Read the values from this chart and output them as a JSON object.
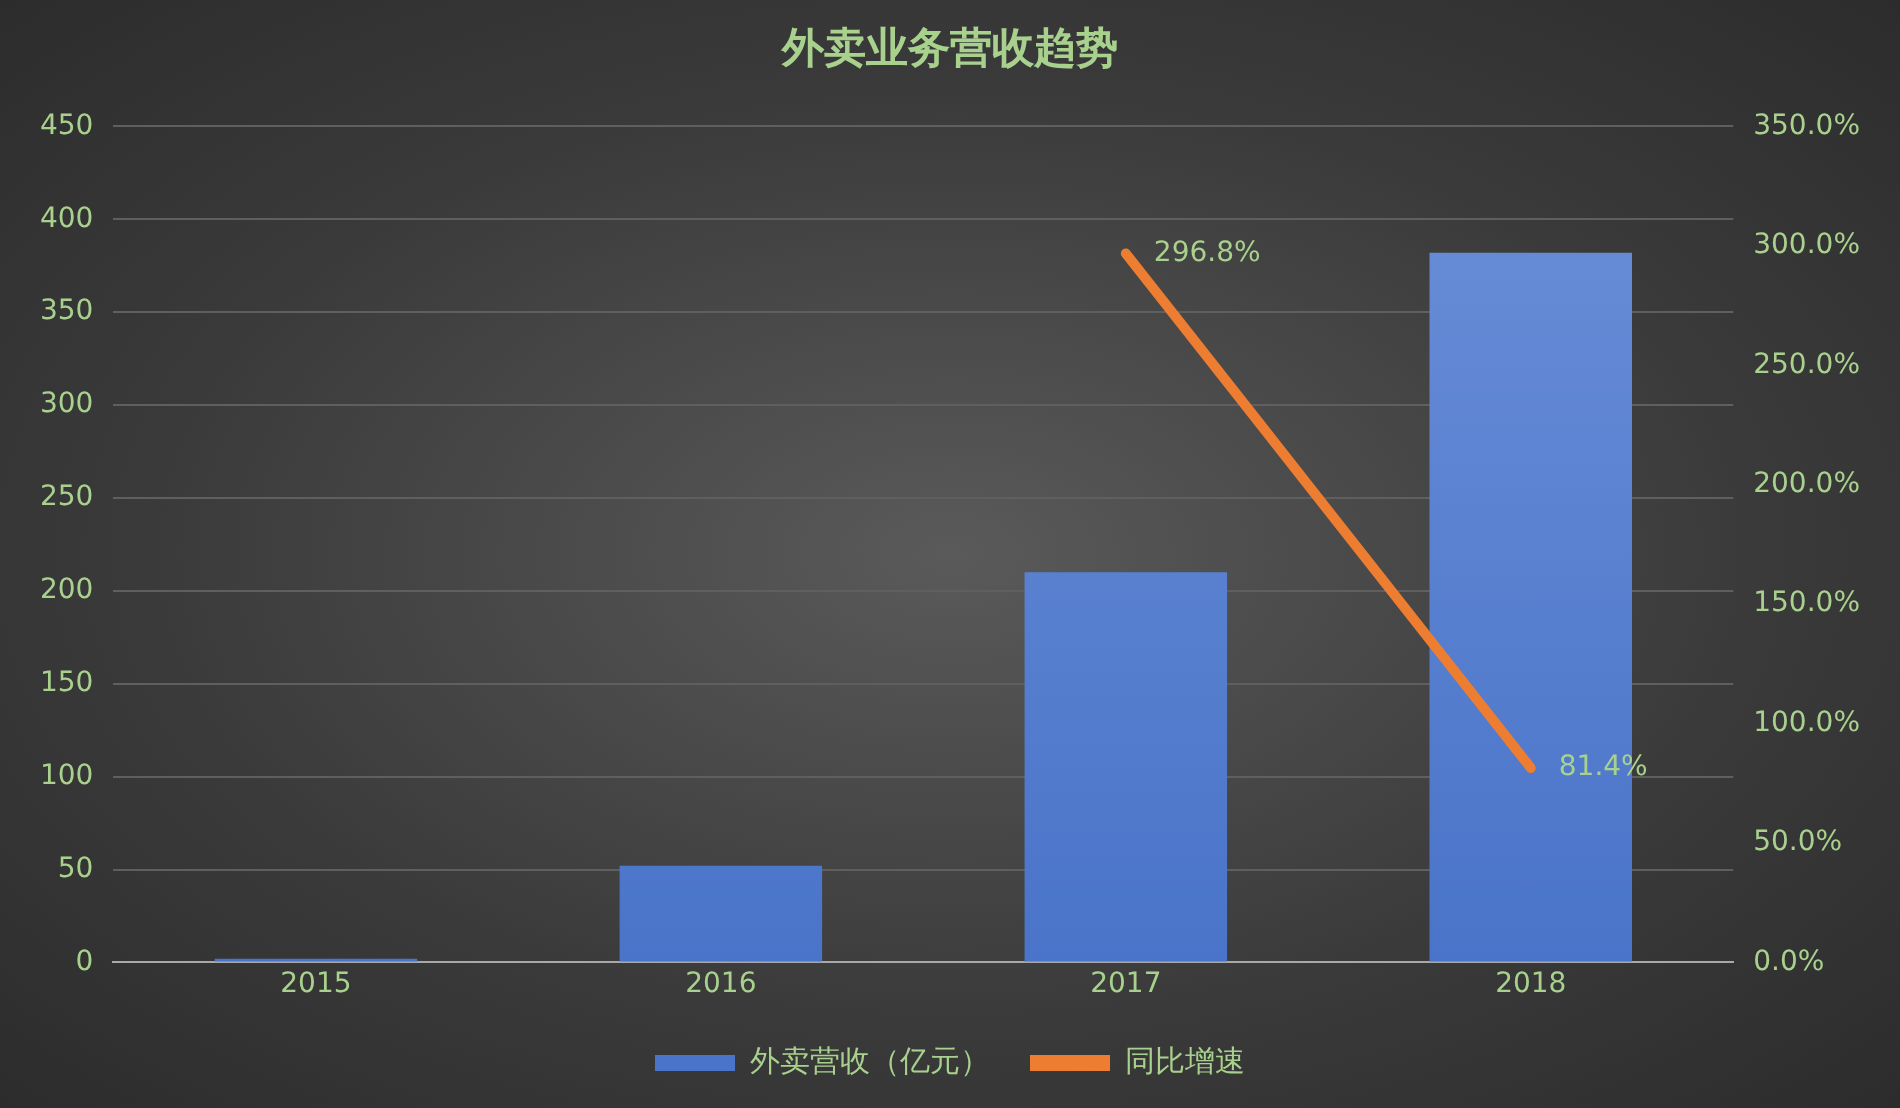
{
  "chart_data": {
    "type": "bar",
    "title": "外卖业务营收趋势",
    "categories": [
      "2015",
      "2016",
      "2017",
      "2018"
    ],
    "series": [
      {
        "name": "外卖营收（亿元）",
        "color": "#4a74c9",
        "values": [
          2,
          52,
          210,
          382
        ]
      },
      {
        "name": "同比增速",
        "type": "line",
        "axis": "y2",
        "color": "#ed7d31",
        "values": [
          null,
          null,
          296.8,
          81.4
        ],
        "value_labels": [
          null,
          null,
          "296.8%",
          "81.4%"
        ]
      }
    ],
    "ylim": [
      0,
      450
    ],
    "yticks": [
      0,
      50,
      100,
      150,
      200,
      250,
      300,
      350,
      400,
      450
    ],
    "y2lim": [
      0,
      350
    ],
    "y2ticks": [
      {
        "value": 0,
        "label": "0.0%"
      },
      {
        "value": 50,
        "label": "50.0%"
      },
      {
        "value": 100,
        "label": "100.0%"
      },
      {
        "value": 150,
        "label": "150.0%"
      },
      {
        "value": 200,
        "label": "200.0%"
      },
      {
        "value": 250,
        "label": "250.0%"
      },
      {
        "value": 300,
        "label": "300.0%"
      },
      {
        "value": 350,
        "label": "350.0%"
      }
    ],
    "grid": "y",
    "legend": "bottom",
    "marker": "none"
  }
}
